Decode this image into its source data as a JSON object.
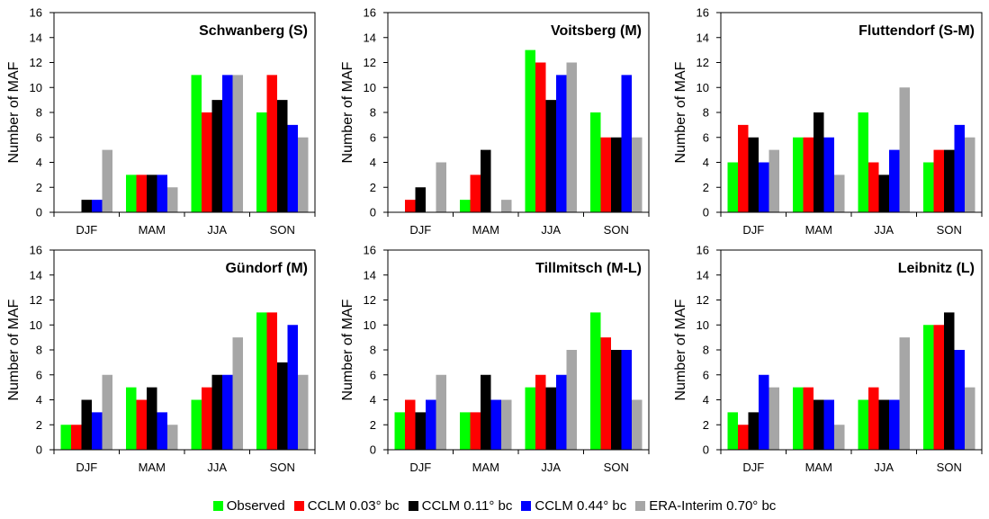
{
  "chart_data": [
    {
      "type": "bar",
      "title": "Schwanberg (S)",
      "ylabel": "Number of MAF",
      "ylim": [
        0,
        16
      ],
      "yticks": [
        0,
        2,
        4,
        6,
        8,
        10,
        12,
        14,
        16
      ],
      "categories": [
        "DJF",
        "MAM",
        "JJA",
        "SON"
      ],
      "series": [
        {
          "name": "Observed",
          "values": [
            0,
            3,
            11,
            8
          ]
        },
        {
          "name": "CCLM 0.03° bc",
          "values": [
            0,
            3,
            8,
            11
          ]
        },
        {
          "name": "CCLM 0.11° bc",
          "values": [
            1,
            3,
            9,
            9
          ]
        },
        {
          "name": "CCLM 0.44° bc",
          "values": [
            1,
            3,
            11,
            7
          ]
        },
        {
          "name": "ERA-Interim 0.70° bc",
          "values": [
            5,
            2,
            11,
            6
          ]
        }
      ]
    },
    {
      "type": "bar",
      "title": "Voitsberg (M)",
      "ylabel": "Number of MAF",
      "ylim": [
        0,
        16
      ],
      "yticks": [
        0,
        2,
        4,
        6,
        8,
        10,
        12,
        14,
        16
      ],
      "categories": [
        "DJF",
        "MAM",
        "JJA",
        "SON"
      ],
      "series": [
        {
          "name": "Observed",
          "values": [
            0,
            1,
            13,
            8
          ]
        },
        {
          "name": "CCLM 0.03° bc",
          "values": [
            1,
            3,
            12,
            6
          ]
        },
        {
          "name": "CCLM 0.11° bc",
          "values": [
            2,
            5,
            9,
            6
          ]
        },
        {
          "name": "CCLM 0.44° bc",
          "values": [
            0,
            0,
            11,
            11
          ]
        },
        {
          "name": "ERA-Interim 0.70° bc",
          "values": [
            4,
            1,
            12,
            6
          ]
        }
      ]
    },
    {
      "type": "bar",
      "title": "Fluttendorf (S-M)",
      "ylabel": "Number of MAF",
      "ylim": [
        0,
        16
      ],
      "yticks": [
        0,
        2,
        4,
        6,
        8,
        10,
        12,
        14,
        16
      ],
      "categories": [
        "DJF",
        "MAM",
        "JJA",
        "SON"
      ],
      "series": [
        {
          "name": "Observed",
          "values": [
            4,
            6,
            8,
            4
          ]
        },
        {
          "name": "CCLM 0.03° bc",
          "values": [
            7,
            6,
            4,
            5
          ]
        },
        {
          "name": "CCLM 0.11° bc",
          "values": [
            6,
            8,
            3,
            5
          ]
        },
        {
          "name": "CCLM 0.44° bc",
          "values": [
            4,
            6,
            5,
            7
          ]
        },
        {
          "name": "ERA-Interim 0.70° bc",
          "values": [
            5,
            3,
            10,
            6
          ]
        }
      ]
    },
    {
      "type": "bar",
      "title": "Gündorf (M)",
      "ylabel": "Number of MAF",
      "ylim": [
        0,
        16
      ],
      "yticks": [
        0,
        2,
        4,
        6,
        8,
        10,
        12,
        14,
        16
      ],
      "categories": [
        "DJF",
        "MAM",
        "JJA",
        "SON"
      ],
      "series": [
        {
          "name": "Observed",
          "values": [
            2,
            5,
            4,
            11
          ]
        },
        {
          "name": "CCLM 0.03° bc",
          "values": [
            2,
            4,
            5,
            11
          ]
        },
        {
          "name": "CCLM 0.11° bc",
          "values": [
            4,
            5,
            6,
            7
          ]
        },
        {
          "name": "CCLM 0.44° bc",
          "values": [
            3,
            3,
            6,
            10
          ]
        },
        {
          "name": "ERA-Interim 0.70° bc",
          "values": [
            6,
            2,
            9,
            6
          ]
        }
      ]
    },
    {
      "type": "bar",
      "title": "Tillmitsch (M-L)",
      "ylabel": "Number of MAF",
      "ylim": [
        0,
        16
      ],
      "yticks": [
        0,
        2,
        4,
        6,
        8,
        10,
        12,
        14,
        16
      ],
      "categories": [
        "DJF",
        "MAM",
        "JJA",
        "SON"
      ],
      "series": [
        {
          "name": "Observed",
          "values": [
            3,
            3,
            5,
            11
          ]
        },
        {
          "name": "CCLM 0.03° bc",
          "values": [
            4,
            3,
            6,
            9
          ]
        },
        {
          "name": "CCLM 0.11° bc",
          "values": [
            3,
            6,
            5,
            8
          ]
        },
        {
          "name": "CCLM 0.44° bc",
          "values": [
            4,
            4,
            6,
            8
          ]
        },
        {
          "name": "ERA-Interim 0.70° bc",
          "values": [
            6,
            4,
            8,
            4
          ]
        }
      ]
    },
    {
      "type": "bar",
      "title": "Leibnitz (L)",
      "ylabel": "Number of MAF",
      "ylim": [
        0,
        16
      ],
      "yticks": [
        0,
        2,
        4,
        6,
        8,
        10,
        12,
        14,
        16
      ],
      "categories": [
        "DJF",
        "MAM",
        "JJA",
        "SON"
      ],
      "series": [
        {
          "name": "Observed",
          "values": [
            3,
            5,
            4,
            10
          ]
        },
        {
          "name": "CCLM 0.03° bc",
          "values": [
            2,
            5,
            5,
            10
          ]
        },
        {
          "name": "CCLM 0.11° bc",
          "values": [
            3,
            4,
            4,
            11
          ]
        },
        {
          "name": "CCLM 0.44° bc",
          "values": [
            6,
            4,
            4,
            8
          ]
        },
        {
          "name": "ERA-Interim 0.70° bc",
          "values": [
            5,
            2,
            9,
            5
          ]
        }
      ]
    }
  ],
  "legend": {
    "placement": "bottom-center",
    "items": [
      {
        "label": "Observed",
        "color": "#00ff00"
      },
      {
        "label": "CCLM 0.03° bc",
        "color": "#ff0000"
      },
      {
        "label": "CCLM 0.11° bc",
        "color": "#000000"
      },
      {
        "label": "CCLM 0.44° bc",
        "color": "#0000ff"
      },
      {
        "label": "ERA-Interim 0.70° bc",
        "color": "#a6a6a6"
      }
    ]
  },
  "colors": {
    "axis": "#000000",
    "background": "#ffffff"
  }
}
